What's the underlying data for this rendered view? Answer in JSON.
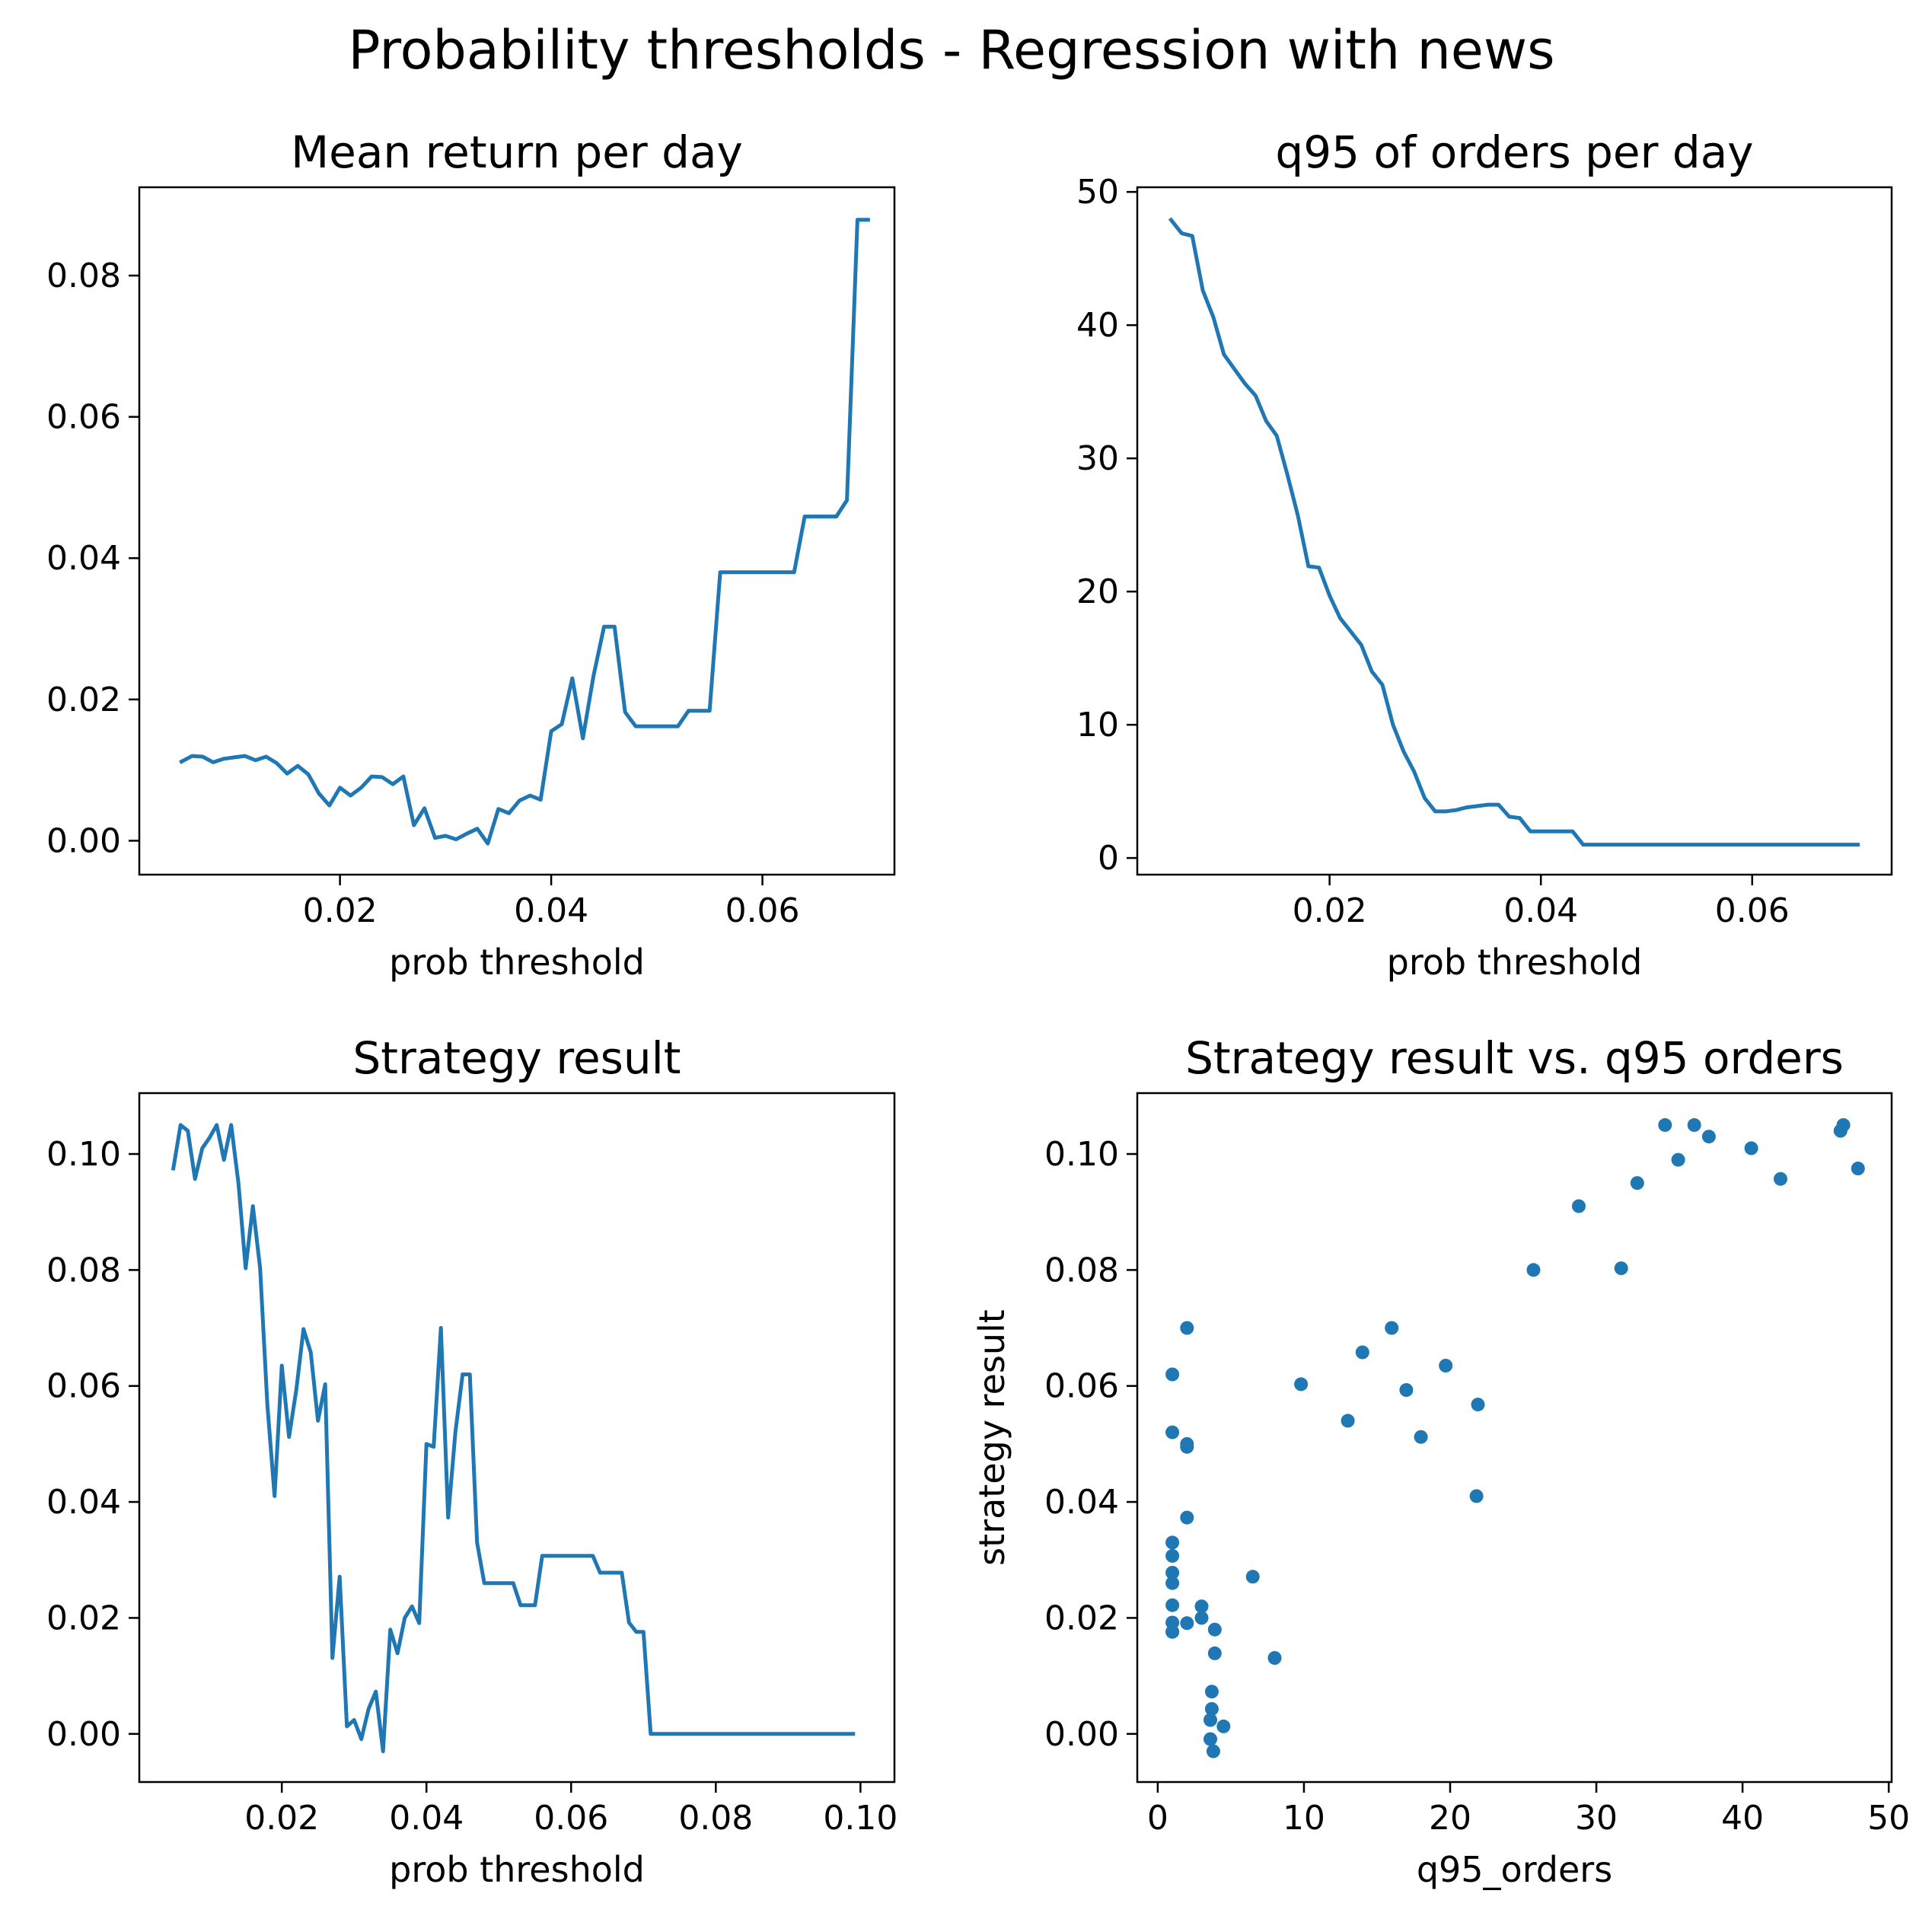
{
  "figure": {
    "title": "Probability thresholds - Regression with news",
    "line_color": "#1f77b4"
  },
  "chart_data": [
    {
      "type": "line",
      "title": "Mean return per day",
      "xlabel": "prob threshold",
      "ylabel": "",
      "xlim": [
        0.001,
        0.0725
      ],
      "ylim": [
        -0.0048,
        0.0925
      ],
      "xticks": [
        0.02,
        0.04,
        0.06
      ],
      "xtick_labels": [
        "0.02",
        "0.04",
        "0.06"
      ],
      "yticks": [
        0.0,
        0.02,
        0.04,
        0.06,
        0.08
      ],
      "ytick_labels": [
        "0.00",
        "0.02",
        "0.04",
        "0.06",
        "0.08"
      ],
      "grid": false,
      "series": [
        {
          "x": [
            0.005,
            0.006,
            0.007,
            0.008,
            0.009,
            0.01,
            0.011,
            0.012,
            0.013,
            0.014,
            0.015,
            0.016,
            0.017,
            0.018,
            0.019,
            0.02,
            0.021,
            0.022,
            0.023,
            0.024,
            0.025,
            0.026,
            0.027,
            0.028,
            0.029,
            0.03,
            0.031,
            0.032,
            0.033,
            0.034,
            0.035,
            0.036,
            0.037,
            0.038,
            0.039,
            0.04,
            0.041,
            0.042,
            0.043,
            0.044,
            0.045,
            0.046,
            0.047,
            0.048,
            0.049,
            0.05,
            0.051,
            0.052,
            0.053,
            0.054,
            0.055,
            0.056,
            0.057,
            0.058,
            0.059,
            0.06,
            0.061,
            0.062,
            0.063,
            0.064,
            0.065,
            0.066,
            0.067,
            0.068,
            0.069,
            0.07
          ],
          "y": [
            0.0112,
            0.012,
            0.0119,
            0.0111,
            0.0116,
            0.0118,
            0.012,
            0.0114,
            0.0119,
            0.011,
            0.0095,
            0.0106,
            0.0094,
            0.0067,
            0.005,
            0.0075,
            0.0064,
            0.0075,
            0.0091,
            0.009,
            0.008,
            0.0091,
            0.0022,
            0.0046,
            0.0004,
            0.0007,
            0.0002,
            0.001,
            0.0017,
            -0.0004,
            0.0045,
            0.0039,
            0.0057,
            0.0064,
            0.0058,
            0.0155,
            0.0165,
            0.023,
            0.0145,
            0.0233,
            0.0303,
            0.0303,
            0.0182,
            0.0162,
            0.0162,
            0.0162,
            0.0162,
            0.0162,
            0.0184,
            0.0184,
            0.0184,
            0.038,
            0.038,
            0.038,
            0.038,
            0.038,
            0.038,
            0.038,
            0.038,
            0.0459,
            0.0459,
            0.0459,
            0.0459,
            0.0482,
            0.0879,
            0.0879
          ]
        }
      ]
    },
    {
      "type": "line",
      "title": "q95 of orders per day",
      "xlabel": "prob threshold",
      "ylabel": "",
      "xlim": [
        0.0018,
        0.0732
      ],
      "ylim": [
        -1.25,
        50.35
      ],
      "xticks": [
        0.02,
        0.04,
        0.06
      ],
      "xtick_labels": [
        "0.02",
        "0.04",
        "0.06"
      ],
      "yticks": [
        0,
        10,
        20,
        30,
        40,
        50
      ],
      "ytick_labels": [
        "0",
        "10",
        "20",
        "30",
        "40",
        "50"
      ],
      "grid": false,
      "series": [
        {
          "x": [
            0.005,
            0.006,
            0.007,
            0.008,
            0.009,
            0.01,
            0.011,
            0.012,
            0.013,
            0.014,
            0.015,
            0.016,
            0.017,
            0.018,
            0.019,
            0.02,
            0.021,
            0.022,
            0.023,
            0.024,
            0.025,
            0.026,
            0.027,
            0.028,
            0.029,
            0.03,
            0.031,
            0.032,
            0.033,
            0.034,
            0.035,
            0.036,
            0.037,
            0.038,
            0.039,
            0.04,
            0.041,
            0.042,
            0.043,
            0.044,
            0.045,
            0.05,
            0.06,
            0.07
          ],
          "y": [
            47.9,
            46.9,
            46.7,
            42.6,
            40.6,
            37.8,
            36.7,
            35.6,
            34.7,
            32.8,
            31.7,
            28.8,
            25.7,
            21.9,
            21.8,
            19.7,
            18.0,
            17.0,
            16.0,
            14.0,
            13.0,
            10.0,
            8.0,
            6.5,
            4.5,
            3.5,
            3.5,
            3.6,
            3.8,
            3.9,
            4.0,
            4.0,
            3.1,
            3.0,
            2.0,
            2.0,
            2.0,
            2.0,
            2.0,
            1.0,
            1.0,
            1.0,
            1.0,
            1.0
          ]
        }
      ]
    },
    {
      "type": "line",
      "title": "Strategy result",
      "xlabel": "prob threshold",
      "ylabel": "",
      "xlim": [
        0.0003,
        0.1047
      ],
      "ylim": [
        -0.0083,
        0.1105
      ],
      "xticks": [
        0.02,
        0.04,
        0.06,
        0.08,
        0.1
      ],
      "xtick_labels": [
        "0.02",
        "0.04",
        "0.06",
        "0.08",
        "0.10"
      ],
      "yticks": [
        0.0,
        0.02,
        0.04,
        0.06,
        0.08,
        0.1
      ],
      "ytick_labels": [
        "0.00",
        "0.02",
        "0.04",
        "0.06",
        "0.08",
        "0.10"
      ],
      "grid": false,
      "series": [
        {
          "x": [
            0.005,
            0.006,
            0.007,
            0.008,
            0.009,
            0.01,
            0.011,
            0.012,
            0.013,
            0.014,
            0.015,
            0.016,
            0.017,
            0.018,
            0.019,
            0.02,
            0.021,
            0.022,
            0.023,
            0.024,
            0.025,
            0.026,
            0.027,
            0.028,
            0.029,
            0.03,
            0.031,
            0.032,
            0.033,
            0.034,
            0.035,
            0.036,
            0.037,
            0.038,
            0.039,
            0.04,
            0.041,
            0.042,
            0.043,
            0.044,
            0.045,
            0.046,
            0.047,
            0.048,
            0.049,
            0.05,
            0.051,
            0.052,
            0.053,
            0.054,
            0.055,
            0.056,
            0.057,
            0.058,
            0.059,
            0.06,
            0.061,
            0.062,
            0.063,
            0.064,
            0.065,
            0.066,
            0.067,
            0.068,
            0.069,
            0.07,
            0.071,
            0.08,
            0.09,
            0.099
          ],
          "y": [
            0.0975,
            0.105,
            0.104,
            0.0957,
            0.101,
            0.1028,
            0.105,
            0.099,
            0.105,
            0.095,
            0.0803,
            0.091,
            0.0803,
            0.0568,
            0.041,
            0.0635,
            0.0512,
            0.0593,
            0.0698,
            0.0658,
            0.054,
            0.0603,
            0.0131,
            0.0271,
            0.0013,
            0.0024,
            -0.0009,
            0.0043,
            0.0073,
            -0.003,
            0.018,
            0.0139,
            0.02,
            0.022,
            0.0191,
            0.05,
            0.0495,
            0.07,
            0.0373,
            0.052,
            0.062,
            0.062,
            0.033,
            0.026,
            0.026,
            0.026,
            0.026,
            0.026,
            0.0222,
            0.0222,
            0.0222,
            0.0307,
            0.0307,
            0.0307,
            0.0307,
            0.0307,
            0.0307,
            0.0307,
            0.0307,
            0.0278,
            0.0278,
            0.0278,
            0.0278,
            0.0192,
            0.0176,
            0.0176,
            0.0,
            0.0,
            0.0,
            0.0
          ]
        }
      ]
    },
    {
      "type": "scatter",
      "title": "Strategy result vs. q95 orders",
      "xlabel": "q95_orders",
      "ylabel": "strategy result",
      "xlim": [
        -1.4,
        50.2
      ],
      "ylim": [
        -0.0083,
        0.1105
      ],
      "xticks": [
        0,
        10,
        20,
        30,
        40,
        50
      ],
      "xtick_labels": [
        "0",
        "10",
        "20",
        "30",
        "40",
        "50"
      ],
      "yticks": [
        0.0,
        0.02,
        0.04,
        0.06,
        0.08,
        0.1
      ],
      "ytick_labels": [
        "0.00",
        "0.02",
        "0.04",
        "0.06",
        "0.08",
        "0.10"
      ],
      "grid": false,
      "series": [
        {
          "x": [
            47.9,
            46.9,
            46.7,
            42.6,
            40.6,
            37.7,
            36.7,
            35.6,
            34.7,
            32.8,
            31.7,
            28.8,
            25.7,
            21.9,
            21.8,
            19.7,
            18.0,
            17.0,
            16.0,
            14.0,
            13.0,
            9.8,
            8.0,
            6.5,
            4.5,
            3.9,
            3.9,
            3.8,
            3.7,
            3.7,
            3.6,
            3.6,
            3.0,
            3.0,
            2.0,
            2.0,
            2.0,
            2.0,
            2.0,
            1.0,
            1.0,
            1.0,
            1.0,
            1.0,
            1.0,
            1.0,
            1.0,
            1.0,
            1.0
          ],
          "y": [
            0.0975,
            0.105,
            0.104,
            0.0957,
            0.101,
            0.103,
            0.105,
            0.099,
            0.105,
            0.095,
            0.0803,
            0.091,
            0.08,
            0.0568,
            0.041,
            0.0635,
            0.0512,
            0.0593,
            0.07,
            0.0658,
            0.054,
            0.0603,
            0.0131,
            0.0271,
            0.0013,
            0.018,
            0.0139,
            -0.003,
            0.0073,
            0.0043,
            0.0024,
            -0.0009,
            0.022,
            0.02,
            0.07,
            0.05,
            0.0495,
            0.0373,
            0.0191,
            0.062,
            0.052,
            0.033,
            0.0307,
            0.0278,
            0.026,
            0.0222,
            0.0192,
            0.0176,
            0.0176
          ]
        }
      ]
    }
  ]
}
